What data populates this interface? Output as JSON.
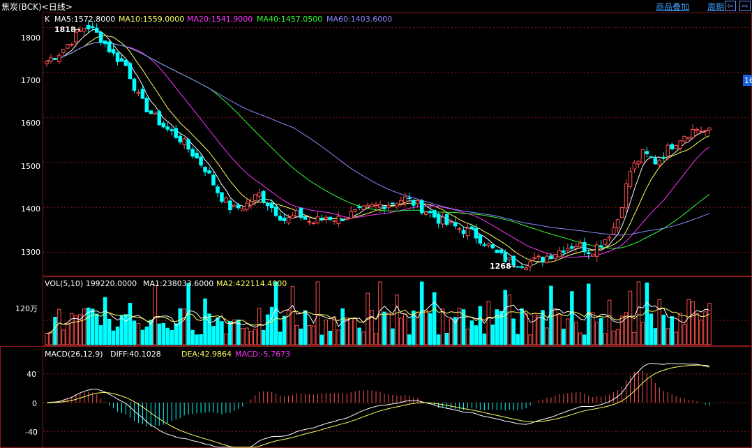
{
  "header": {
    "title": "焦炭(BCK)<日线>",
    "links": [
      "商品叠加",
      "周期"
    ],
    "nav_prev": "⇦",
    "nav_next": "⇨"
  },
  "price_panel": {
    "legend_prefix": "K",
    "ma_items": [
      {
        "label": "MA5:1572.8000",
        "color": "#ffffff"
      },
      {
        "label": "MA10:1559.0000",
        "color": "#ffff66"
      },
      {
        "label": "MA20:1541.9000",
        "color": "#ff33ff"
      },
      {
        "label": "MA40:1457.0500",
        "color": "#33ff33"
      },
      {
        "label": "MA60:1403.6000",
        "color": "#8888ff"
      }
    ],
    "high_marker": "1818",
    "low_marker": "1268",
    "y_ticks": [
      "1800",
      "1700",
      "1600",
      "1500",
      "1400",
      "1300"
    ],
    "right_tag": "16"
  },
  "volume_panel": {
    "legend": "VOL(5,10) 199220.0000",
    "ma1": "MA1:238033.6000",
    "ma2": "MA2:422114.4000",
    "y_tick": "120万"
  },
  "macd_panel": {
    "legend": "MACD(26,12,9)",
    "diff": "DIFF:40.1028",
    "dea": "DEA:42.9864",
    "macd": "MACD:-5.7673",
    "y_ticks": [
      "40",
      "0",
      "-40"
    ]
  },
  "colors": {
    "up": "#ff5050",
    "down": "#00ffff",
    "grid": "#8b1a1a",
    "ma5": "#ffffff",
    "ma10": "#ffff66",
    "ma20": "#ff33ff",
    "ma40": "#33ff33",
    "ma60": "#8888ff"
  },
  "chart_data": {
    "type": "candlestick",
    "y_range_price": [
      1250,
      1830
    ],
    "anchor_closes": [
      1725,
      1745,
      1775,
      1805,
      1780,
      1740,
      1715,
      1640,
      1605,
      1575,
      1555,
      1520,
      1485,
      1430,
      1395,
      1405,
      1430,
      1400,
      1370,
      1385,
      1365,
      1380,
      1375,
      1385,
      1395,
      1405,
      1410,
      1420,
      1405,
      1385,
      1365,
      1355,
      1345,
      1325,
      1295,
      1280,
      1275,
      1283,
      1295,
      1310,
      1318,
      1303,
      1325,
      1365,
      1480,
      1520,
      1500,
      1535,
      1560,
      1575,
      1568
    ],
    "volume_ma_note": "volume bars shown in 万 units",
    "macd_y_range": [
      -60,
      60
    ]
  }
}
